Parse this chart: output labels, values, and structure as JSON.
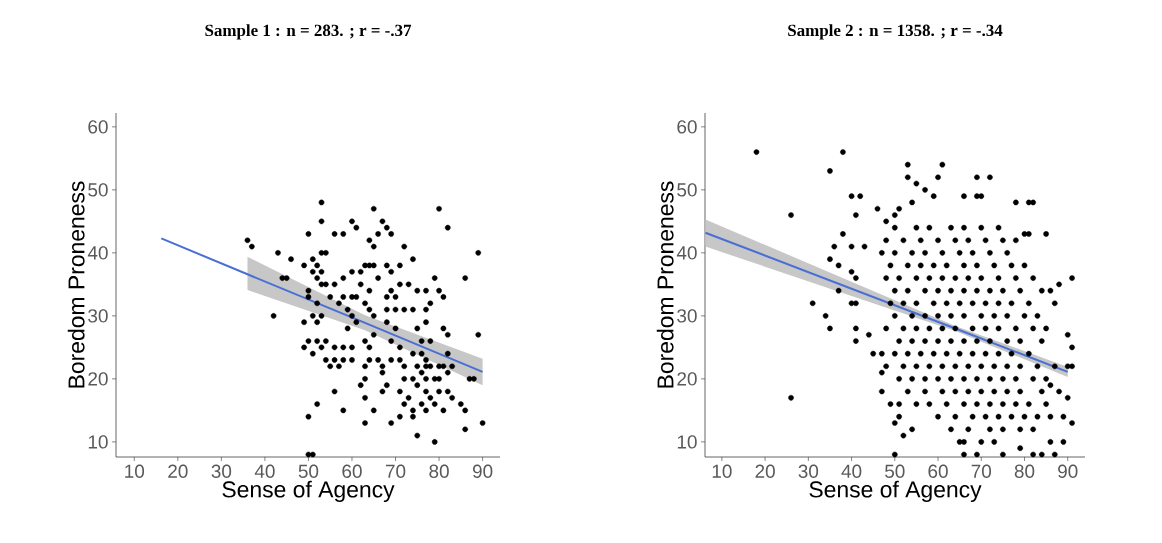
{
  "chart_data": [
    {
      "type": "scatter",
      "title": "Sample 1 :  n = 283. ; r = -.37",
      "xlabel": "Sense of Agency",
      "ylabel": "Boredom Proneness",
      "xlim": [
        5.8,
        94
      ],
      "ylim": [
        7.6,
        62.2
      ],
      "xticks": [
        10,
        20,
        30,
        40,
        50,
        60,
        70,
        80,
        90
      ],
      "yticks": [
        10,
        20,
        30,
        40,
        50,
        60
      ],
      "marker": "circle",
      "series": [
        {
          "color": "#000000",
          "x": [
            53,
            53,
            50,
            56,
            58,
            60,
            61,
            65,
            66,
            65,
            64,
            67,
            68,
            69,
            72,
            80,
            82,
            36,
            37,
            43,
            46,
            44,
            45,
            42,
            89,
            86,
            89,
            90,
            86,
            79,
            75,
            50,
            52,
            50,
            51,
            58,
            56,
            63,
            65,
            63,
            69,
            71,
            74,
            77,
            81,
            85,
            86,
            87,
            88,
            83,
            82,
            49,
            51,
            52,
            53,
            53,
            54,
            52,
            51,
            54,
            53,
            50,
            50,
            52,
            53,
            51,
            49,
            52,
            49,
            50,
            52,
            54,
            51,
            53,
            54,
            55,
            56,
            57,
            58,
            60,
            56,
            58,
            60,
            55,
            57,
            58,
            60,
            61,
            56,
            58,
            60,
            62,
            62,
            59,
            60,
            61,
            59,
            63,
            64,
            65,
            66,
            64,
            63,
            64,
            65,
            63,
            64,
            65,
            64,
            63,
            63,
            62,
            66,
            67,
            67,
            68,
            67,
            68,
            69,
            71,
            71,
            69,
            68,
            70,
            68,
            70,
            72,
            74,
            68,
            70,
            69,
            71,
            69,
            71,
            72,
            74,
            73,
            75,
            77,
            79,
            80,
            81,
            77,
            77,
            78,
            75,
            76,
            78,
            81,
            82,
            74,
            76,
            77,
            75,
            77,
            78,
            80,
            81,
            72,
            74,
            76,
            77,
            79,
            80,
            82,
            71,
            73,
            75,
            77,
            78,
            80,
            82,
            83,
            72,
            74,
            76,
            79
          ],
          "values": [
            48,
            45,
            43,
            43,
            43,
            45,
            44,
            47,
            43,
            41,
            42,
            45,
            44,
            43,
            41,
            47,
            44,
            42,
            41,
            40,
            39,
            36,
            36,
            30,
            40,
            36,
            27,
            13,
            12,
            10,
            11,
            14,
            16,
            8,
            8,
            15,
            18,
            13,
            15,
            17,
            13,
            14,
            14,
            15,
            15,
            16,
            15,
            20,
            20,
            22,
            24,
            38,
            39,
            38,
            37,
            35,
            35,
            36,
            37,
            40,
            40,
            34,
            33,
            32,
            30,
            30,
            29,
            29,
            25,
            26,
            26,
            26,
            24,
            25,
            23,
            22,
            23,
            22,
            23,
            23,
            25,
            25,
            25,
            33,
            32,
            33,
            33,
            33,
            35,
            36,
            37,
            37,
            35,
            31,
            30,
            29,
            28,
            38,
            38,
            38,
            36,
            34,
            32,
            31,
            30,
            26,
            25,
            27,
            23,
            22,
            20,
            19,
            23,
            22,
            21,
            19,
            18,
            38,
            37,
            38,
            35,
            34,
            33,
            33,
            31,
            31,
            31,
            31,
            29,
            28,
            26,
            25,
            23,
            23,
            22,
            39,
            35,
            34,
            34,
            36,
            34,
            33,
            31,
            29,
            32,
            28,
            26,
            26,
            28,
            27,
            24,
            24,
            23,
            22,
            22,
            22,
            22,
            22,
            20,
            20,
            21,
            20,
            20,
            20,
            21,
            18,
            17,
            19,
            18,
            17,
            18,
            18,
            17,
            16,
            15,
            16,
            16
          ]
        },
        {
          "type": "line",
          "marker": "none",
          "color": "#4a6fd4",
          "x": [
            16.2,
            36,
            63,
            90
          ],
          "values": [
            42.3,
            36.6,
            28.9,
            21.1
          ],
          "lower": [
            null,
            34.1,
            27.7,
            19.0
          ],
          "upper": [
            null,
            39.4,
            30.1,
            23.2
          ]
        }
      ]
    },
    {
      "type": "scatter",
      "title": "Sample 2 :  n = 1358. ; r = -.34",
      "xlabel": "Sense of Agency",
      "ylabel": "Boredom Proneness",
      "xlim": [
        6.1,
        94
      ],
      "ylim": [
        7.6,
        62.2
      ],
      "xticks": [
        10,
        20,
        30,
        40,
        50,
        60,
        70,
        80,
        90
      ],
      "yticks": [
        10,
        20,
        30,
        40,
        50,
        60
      ],
      "marker": "circle",
      "series": [
        {
          "color": "#000000",
          "x": [
            18,
            38,
            26,
            26,
            35,
            31,
            34,
            35,
            40,
            42,
            41,
            38,
            36,
            40,
            43,
            35,
            37,
            40,
            41,
            37,
            40,
            41,
            41,
            41,
            44,
            53,
            53,
            61,
            60,
            69,
            72,
            55,
            57,
            59,
            66,
            69,
            70,
            78,
            81,
            82,
            85,
            80,
            81,
            46,
            48,
            50,
            51,
            54,
            91,
            88,
            86,
            87,
            90,
            91,
            90,
            91,
            86,
            88,
            90,
            86,
            89,
            91,
            89,
            86,
            87,
            84,
            82,
            79,
            75,
            69,
            66,
            65,
            66,
            70,
            73,
            50,
            52,
            54,
            51,
            50,
            47,
            47,
            48,
            45,
            47,
            49,
            51,
            55,
            50,
            55,
            58,
            63,
            66,
            70,
            74,
            48,
            52,
            56,
            60,
            64,
            67,
            71,
            75,
            78,
            47,
            50,
            54,
            57,
            61,
            65,
            68,
            72,
            76,
            49,
            53,
            56,
            59,
            62,
            66,
            69,
            73,
            77,
            80,
            48,
            51,
            55,
            58,
            61,
            64,
            67,
            70,
            74,
            78,
            82,
            50,
            53,
            57,
            60,
            63,
            66,
            69,
            72,
            75,
            79,
            84,
            49,
            52,
            55,
            59,
            62,
            65,
            68,
            71,
            74,
            77,
            81,
            50,
            54,
            57,
            60,
            63,
            66,
            70,
            73,
            76,
            80,
            83,
            48,
            52,
            55,
            58,
            61,
            64,
            68,
            71,
            74,
            78,
            82,
            85,
            51,
            54,
            57,
            60,
            63,
            66,
            69,
            72,
            76,
            79,
            84,
            50,
            53,
            56,
            59,
            62,
            65,
            68,
            71,
            74,
            77,
            81,
            52,
            55,
            58,
            61,
            64,
            67,
            70,
            73,
            76,
            79,
            83,
            87,
            51,
            54,
            57,
            60,
            63,
            66,
            69,
            72,
            75,
            78,
            82,
            85,
            53,
            57,
            61,
            64,
            67,
            70,
            73,
            76,
            79,
            84,
            58,
            62,
            66,
            69,
            72,
            75,
            78,
            81,
            85,
            60,
            64,
            68,
            71,
            74,
            77,
            80,
            83,
            63,
            67,
            72,
            75,
            79,
            82
          ],
          "values": [
            56,
            56,
            46,
            17,
            53,
            32,
            30,
            28,
            49,
            49,
            46,
            43,
            41,
            41,
            41,
            39,
            38,
            37,
            36,
            34,
            32,
            32,
            28,
            26,
            27,
            54,
            52,
            54,
            52,
            52,
            52,
            51,
            50,
            49,
            49,
            49,
            49,
            48,
            48,
            48,
            43,
            43,
            43,
            47,
            45,
            46,
            47,
            48,
            36,
            35,
            34,
            32,
            27,
            25,
            22,
            22,
            19,
            18,
            17,
            14,
            14,
            13,
            10,
            10,
            8,
            8,
            8,
            9,
            8,
            8,
            8,
            10,
            10,
            10,
            10,
            8,
            11,
            12,
            14,
            13,
            18,
            21,
            22,
            24,
            24,
            16,
            16,
            16,
            44,
            44,
            44,
            44,
            44,
            44,
            44,
            42,
            42,
            42,
            42,
            42,
            42,
            42,
            42,
            42,
            40,
            40,
            40,
            40,
            40,
            40,
            40,
            40,
            40,
            38,
            38,
            38,
            38,
            38,
            38,
            38,
            38,
            38,
            38,
            36,
            36,
            36,
            36,
            36,
            36,
            36,
            36,
            36,
            36,
            36,
            34,
            34,
            34,
            34,
            34,
            34,
            34,
            34,
            34,
            34,
            34,
            32,
            32,
            32,
            32,
            32,
            32,
            32,
            32,
            32,
            32,
            32,
            30,
            30,
            30,
            30,
            30,
            30,
            30,
            30,
            30,
            30,
            30,
            28,
            28,
            28,
            28,
            28,
            28,
            28,
            28,
            28,
            28,
            28,
            28,
            26,
            26,
            26,
            26,
            26,
            26,
            26,
            26,
            26,
            26,
            26,
            24,
            24,
            24,
            24,
            24,
            24,
            24,
            24,
            24,
            24,
            24,
            22,
            22,
            22,
            22,
            22,
            22,
            22,
            22,
            22,
            22,
            22,
            22,
            20,
            20,
            20,
            20,
            20,
            20,
            20,
            20,
            20,
            20,
            20,
            20,
            18,
            18,
            18,
            18,
            18,
            18,
            18,
            18,
            18,
            18,
            16,
            16,
            16,
            16,
            16,
            16,
            16,
            16,
            16,
            14,
            14,
            14,
            14,
            14,
            14,
            14,
            14,
            12,
            12,
            12,
            12,
            12,
            12
          ]
        },
        {
          "type": "line",
          "marker": "none",
          "color": "#4a6fd4",
          "x": [
            6.2,
            64,
            90
          ],
          "values": [
            43.2,
            28.0,
            21.1
          ],
          "lower": [
            41.0,
            27.6,
            20.3
          ],
          "upper": [
            45.3,
            28.4,
            21.9
          ]
        }
      ]
    }
  ]
}
